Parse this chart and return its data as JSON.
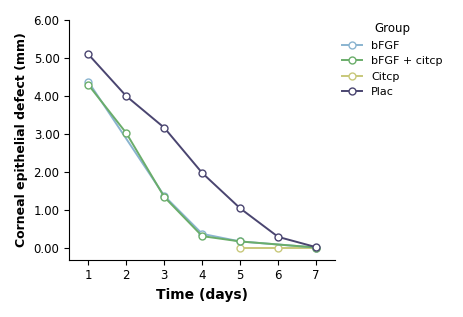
{
  "x": [
    1,
    2,
    3,
    4,
    5,
    6,
    7
  ],
  "series": [
    {
      "key": "bFGF",
      "y": [
        4.38,
        null,
        1.38,
        0.38,
        0.18,
        null,
        0.02
      ],
      "color": "#8ab4d0",
      "label": "bFGF",
      "zorder": 3
    },
    {
      "key": "bFGF_citcp",
      "y": [
        4.3,
        3.03,
        1.35,
        0.32,
        0.18,
        null,
        0.02
      ],
      "color": "#6aad6a",
      "label": "bFGF + citcp",
      "zorder": 4
    },
    {
      "key": "Citcp",
      "y": [
        null,
        null,
        null,
        null,
        0.02,
        0.02,
        0.02
      ],
      "color": "#c8c87a",
      "label": "Citcp",
      "zorder": 2
    },
    {
      "key": "Plac",
      "y": [
        5.1,
        4.0,
        3.17,
        1.98,
        1.05,
        0.3,
        0.03
      ],
      "color": "#4a4570",
      "label": "Plac",
      "zorder": 5
    }
  ],
  "ylabel": "Corneal epithelial defect (mm)",
  "xlabel": "Time (days)",
  "legend_title": "Group",
  "ylim": [
    -0.3,
    6.0
  ],
  "yticks": [
    0.0,
    1.0,
    2.0,
    3.0,
    4.0,
    5.0,
    6.0
  ],
  "xticks": [
    1,
    2,
    3,
    4,
    5,
    6,
    7
  ],
  "marker": "o",
  "marker_facecolor": "white",
  "linewidth": 1.4,
  "markersize": 5
}
